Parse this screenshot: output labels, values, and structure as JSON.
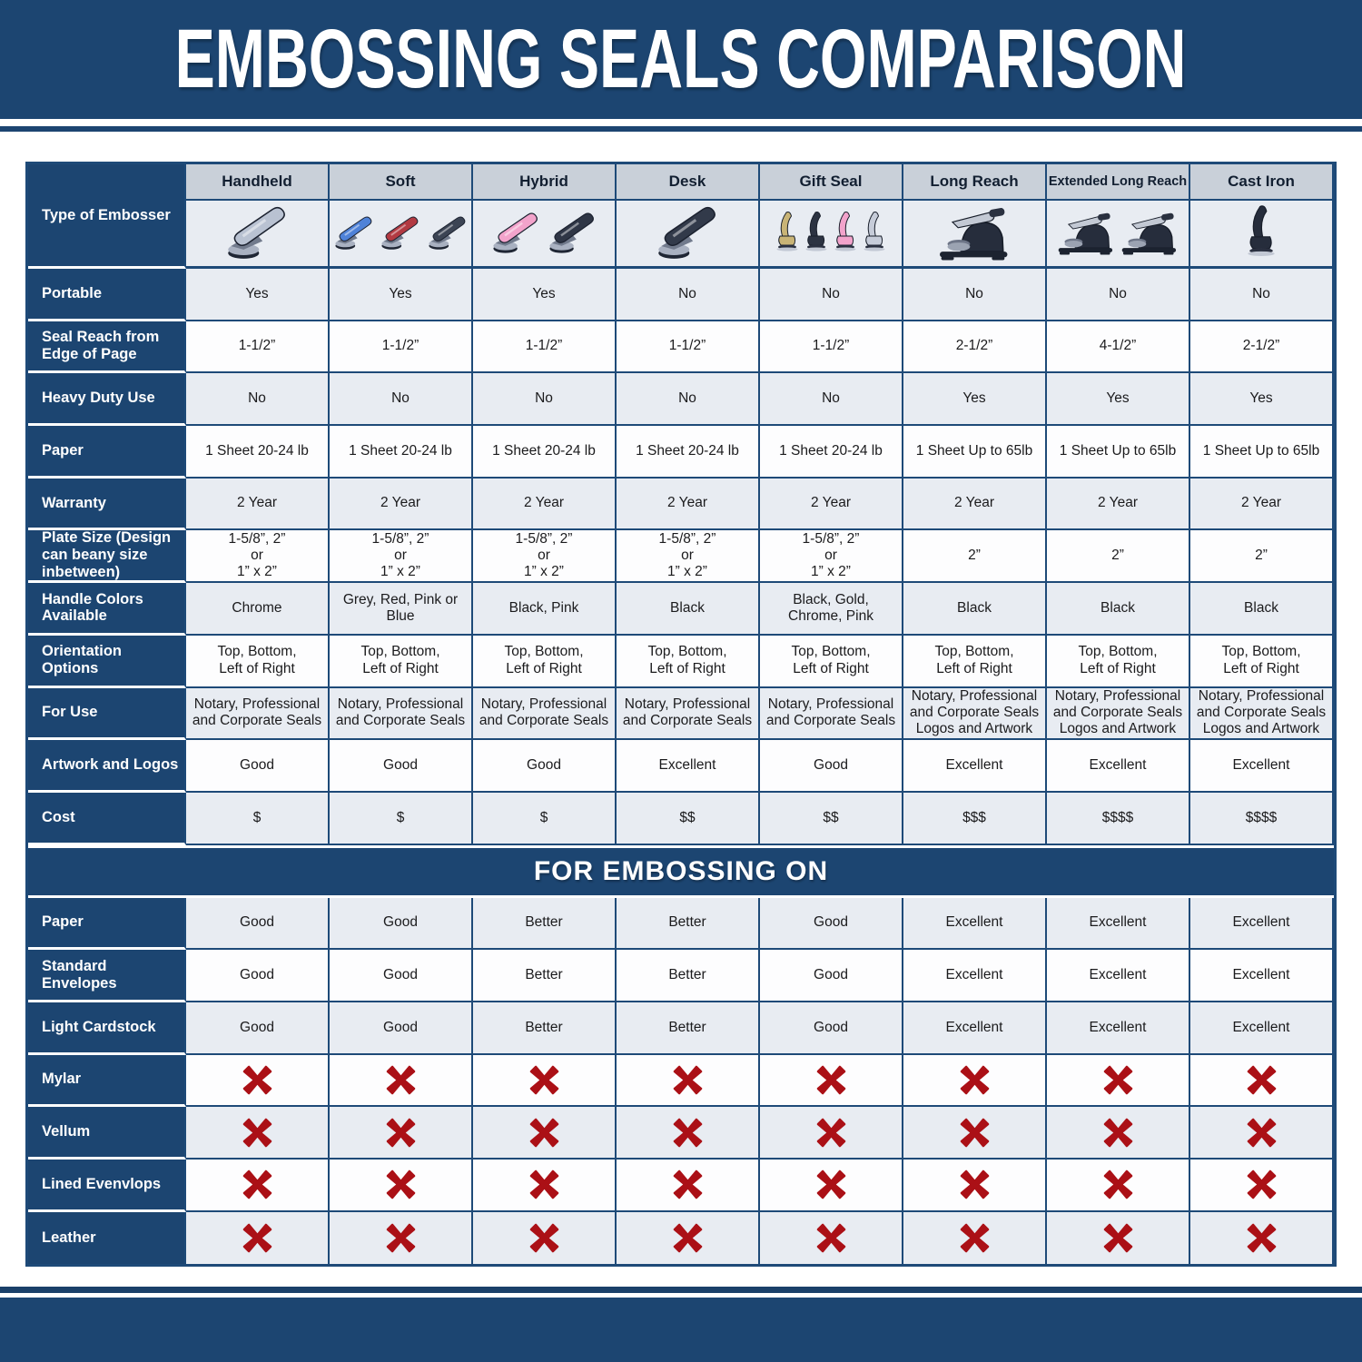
{
  "page": {
    "title": "EMBOSSING SEALS COMPARISON"
  },
  "colors": {
    "navy": "#1c4571",
    "table_border": "#1e4a78",
    "header_cell_bg": "#c9d0d9",
    "row_light_bg": "#e8ecf2",
    "row_white_bg": "#fdfdfe",
    "x_mark_red": "#ab1016",
    "chrome": "#b9c2d2",
    "silver": "#c3c9d4"
  },
  "icons": {
    "x_mark": "cross-mark"
  },
  "table": {
    "corner_label": "Type of Embosser",
    "columns": [
      "Handheld",
      "Soft",
      "Hybrid",
      "Desk",
      "Gift Seal",
      "Long Reach",
      "Extended Long Reach",
      "Cast Iron"
    ],
    "embosser_images": [
      {
        "column": "Handheld",
        "style": "plier",
        "colors": [
          "#b9c2d2"
        ]
      },
      {
        "column": "Soft",
        "style": "plier",
        "colors": [
          "#4f82d8",
          "#b23a42",
          "#3c4454"
        ]
      },
      {
        "column": "Hybrid",
        "style": "plier",
        "colors": [
          "#f2a3cb",
          "#2f3646"
        ]
      },
      {
        "column": "Desk",
        "style": "plier",
        "colors": [
          "#323a4a"
        ]
      },
      {
        "column": "Gift Seal",
        "style": "upright",
        "colors": [
          "#c9b476",
          "#2c3342",
          "#f2a3cb",
          "#c6ccd9"
        ]
      },
      {
        "column": "Long Reach",
        "style": "press",
        "colors": [
          "#262d3c"
        ]
      },
      {
        "column": "Extended Long Reach",
        "style": "press",
        "colors": [
          "#262d3c",
          "#262d3c"
        ]
      },
      {
        "column": "Cast Iron",
        "style": "upright",
        "colors": [
          "#262d3c"
        ]
      }
    ],
    "spec_rows": [
      {
        "label": "Portable",
        "values": [
          "Yes",
          "Yes",
          "Yes",
          "No",
          "No",
          "No",
          "No",
          "No"
        ]
      },
      {
        "label": "Seal Reach from Edge of Page",
        "values": [
          "1-1/2”",
          "1-1/2”",
          "1-1/2”",
          "1-1/2”",
          "1-1/2”",
          "2-1/2”",
          "4-1/2”",
          "2-1/2”"
        ]
      },
      {
        "label": "Heavy Duty Use",
        "values": [
          "No",
          "No",
          "No",
          "No",
          "No",
          "Yes",
          "Yes",
          "Yes"
        ]
      },
      {
        "label": "Paper",
        "values": [
          "1 Sheet 20-24 lb",
          "1 Sheet 20-24 lb",
          "1 Sheet 20-24 lb",
          "1 Sheet 20-24 lb",
          "1 Sheet 20-24 lb",
          "1 Sheet Up to 65lb",
          "1 Sheet Up to 65lb",
          "1 Sheet Up to 65lb"
        ]
      },
      {
        "label": "Warranty",
        "values": [
          "2 Year",
          "2 Year",
          "2 Year",
          "2 Year",
          "2 Year",
          "2 Year",
          "2 Year",
          "2 Year"
        ]
      },
      {
        "label": "Plate Size (Design can beany size inbetween)",
        "values": [
          "1-5/8”, 2”\nor\n1” x 2”",
          "1-5/8”, 2”\nor\n1” x 2”",
          "1-5/8”, 2”\nor\n1” x 2”",
          "1-5/8”, 2”\nor\n1” x 2”",
          "1-5/8”, 2”\nor\n1” x 2”",
          "2”",
          "2”",
          "2”"
        ]
      },
      {
        "label": "Handle Colors Available",
        "values": [
          "Chrome",
          "Grey, Red, Pink or Blue",
          "Black, Pink",
          "Black",
          "Black, Gold, Chrome, Pink",
          "Black",
          "Black",
          "Black"
        ]
      },
      {
        "label": "Orientation Options",
        "values": [
          "Top, Bottom,\nLeft of Right",
          "Top, Bottom,\nLeft of Right",
          "Top, Bottom,\nLeft of Right",
          "Top, Bottom,\nLeft of Right",
          "Top, Bottom,\nLeft of Right",
          "Top, Bottom,\nLeft of Right",
          "Top, Bottom,\nLeft of Right",
          "Top, Bottom,\nLeft of Right"
        ]
      },
      {
        "label": "For Use",
        "values": [
          "Notary, Professional\nand Corporate Seals",
          "Notary, Professional\nand Corporate Seals",
          "Notary, Professional\nand Corporate Seals",
          "Notary, Professional\nand Corporate Seals",
          "Notary, Professional\nand Corporate Seals",
          "Notary, Professional\nand Corporate Seals\nLogos and Artwork",
          "Notary, Professional\nand Corporate Seals\nLogos and Artwork",
          "Notary, Professional\nand Corporate Seals\nLogos and Artwork"
        ]
      },
      {
        "label": "Artwork and Logos",
        "values": [
          "Good",
          "Good",
          "Good",
          "Excellent",
          "Good",
          "Excellent",
          "Excellent",
          "Excellent"
        ]
      },
      {
        "label": "Cost",
        "values": [
          "$",
          "$",
          "$",
          "$$",
          "$$",
          "$$$",
          "$$$$",
          "$$$$"
        ]
      }
    ],
    "section_title": "FOR EMBOSSING ON",
    "embossing_rows": [
      {
        "label": "Paper",
        "values": [
          "Good",
          "Good",
          "Better",
          "Better",
          "Good",
          "Excellent",
          "Excellent",
          "Excellent"
        ]
      },
      {
        "label": "Standard Envelopes",
        "values": [
          "Good",
          "Good",
          "Better",
          "Better",
          "Good",
          "Excellent",
          "Excellent",
          "Excellent"
        ]
      },
      {
        "label": "Light Cardstock",
        "values": [
          "Good",
          "Good",
          "Better",
          "Better",
          "Good",
          "Excellent",
          "Excellent",
          "Excellent"
        ]
      },
      {
        "label": "Mylar",
        "values": [
          "X",
          "X",
          "X",
          "X",
          "X",
          "X",
          "X",
          "X"
        ]
      },
      {
        "label": "Vellum",
        "values": [
          "X",
          "X",
          "X",
          "X",
          "X",
          "X",
          "X",
          "X"
        ]
      },
      {
        "label": "Lined Evenvlops",
        "values": [
          "X",
          "X",
          "X",
          "X",
          "X",
          "X",
          "X",
          "X"
        ]
      },
      {
        "label": "Leather",
        "values": [
          "X",
          "X",
          "X",
          "X",
          "X",
          "X",
          "X",
          "X"
        ]
      }
    ]
  }
}
